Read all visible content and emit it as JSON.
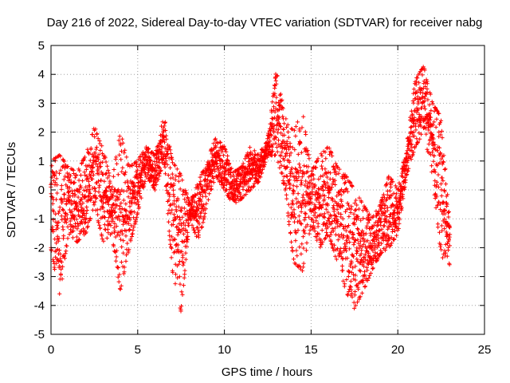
{
  "chart_data": {
    "type": "scatter",
    "title": "Day 216 of 2022, Sidereal Day-to-day VTEC variation (SDTVAR) for receiver nabg",
    "xlabel": "GPS time / hours",
    "ylabel": "SDTVAR / TECUs",
    "xlim": [
      0,
      25
    ],
    "ylim": [
      -5,
      5
    ],
    "xticks": [
      0,
      5,
      10,
      15,
      20,
      25
    ],
    "yticks": [
      -5,
      -4,
      -3,
      -2,
      -1,
      0,
      1,
      2,
      3,
      4,
      5
    ],
    "grid": true,
    "marker": "+",
    "color": "#ff0000",
    "series": [
      {
        "name": "SDTVAR",
        "envelope_hours": [
          0,
          0.5,
          1,
          1.5,
          2,
          2.5,
          3,
          3.5,
          4,
          4.5,
          5,
          5.5,
          6,
          6.5,
          7,
          7.5,
          8,
          8.5,
          9,
          9.5,
          10,
          10.5,
          11,
          11.5,
          12,
          12.5,
          13,
          13.5,
          14,
          14.5,
          15,
          15.5,
          16,
          16.5,
          17,
          17.5,
          18,
          18.5,
          19,
          19.5,
          20,
          20.5,
          21,
          21.5,
          22,
          22.5,
          23
        ],
        "max_values": [
          1.0,
          1.2,
          0.8,
          0.6,
          1.2,
          2.2,
          1.4,
          0.2,
          2.0,
          0.8,
          1.0,
          1.5,
          1.2,
          2.6,
          1.0,
          0.5,
          -0.5,
          0.3,
          1.0,
          1.8,
          1.5,
          0.6,
          0.8,
          1.5,
          1.2,
          1.8,
          4.2,
          2.5,
          2.0,
          2.8,
          0.6,
          1.2,
          1.5,
          0.8,
          0.5,
          0.0,
          -0.5,
          -1.0,
          -0.5,
          0.5,
          0.0,
          1.5,
          3.8,
          4.3,
          3.0,
          2.5,
          -1.2
        ],
        "min_values": [
          -2.0,
          -3.7,
          -1.5,
          -1.8,
          -1.5,
          -0.5,
          -1.8,
          -1.5,
          -3.5,
          -2.0,
          -0.8,
          0.5,
          0.0,
          1.0,
          -2.8,
          -4.2,
          -1.0,
          -1.8,
          -0.5,
          0.5,
          0.0,
          -0.5,
          -0.3,
          0.0,
          0.3,
          1.2,
          1.2,
          0.0,
          -2.5,
          -2.8,
          -1.2,
          -2.0,
          -1.5,
          -2.5,
          -3.5,
          -4.1,
          -3.5,
          -2.8,
          -2.2,
          -2.0,
          -1.5,
          0.5,
          1.5,
          2.0,
          0.5,
          -2.3,
          -2.6
        ]
      }
    ]
  }
}
